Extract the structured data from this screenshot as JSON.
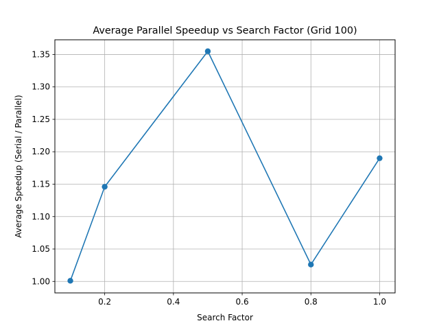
{
  "chart_data": {
    "type": "line",
    "title": "Average Parallel Speedup vs Search Factor (Grid 100)",
    "xlabel": "Search Factor",
    "ylabel": "Average Speedup (Serial / Parallel)",
    "xlim": [
      0.055,
      1.045
    ],
    "ylim": [
      0.9823,
      1.3727
    ],
    "x_ticks": [
      0.2,
      0.4,
      0.6,
      0.8,
      1.0
    ],
    "x_tick_labels": [
      "0.2",
      "0.4",
      "0.6",
      "0.8",
      "1.0"
    ],
    "y_ticks": [
      1.0,
      1.05,
      1.1,
      1.15,
      1.2,
      1.25,
      1.3,
      1.35
    ],
    "y_tick_labels": [
      "1.00",
      "1.05",
      "1.10",
      "1.15",
      "1.20",
      "1.25",
      "1.30",
      "1.35"
    ],
    "grid": true,
    "series": [
      {
        "color": "#1f77b4",
        "marker": "circle",
        "x": [
          0.1,
          0.2,
          0.5,
          0.8,
          1.0
        ],
        "y": [
          1.001,
          1.146,
          1.355,
          1.026,
          1.19
        ]
      }
    ]
  }
}
